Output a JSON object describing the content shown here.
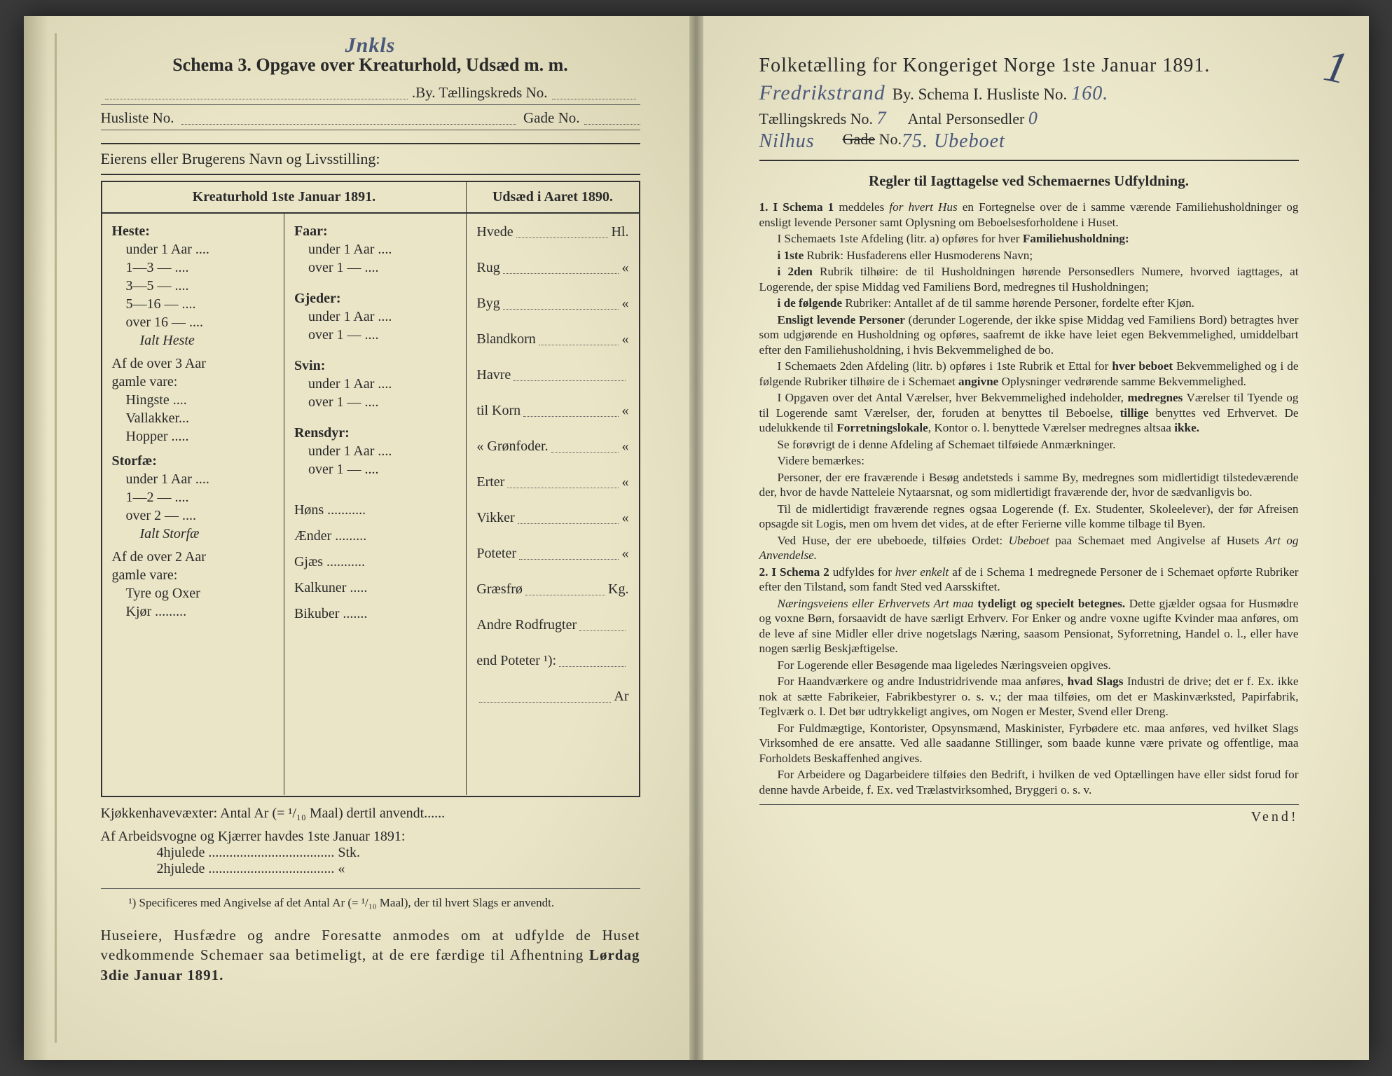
{
  "colors": {
    "paper": "#ece8cc",
    "paper_edge": "#ded9ba",
    "ink": "#2a2a2a",
    "handwriting": "#4a587a",
    "spine": "#6e6b56"
  },
  "typography": {
    "base_font": "Georgia, 'Times New Roman', serif",
    "handwriting_font": "'Brush Script MT', cursive",
    "left_title_pt": 26,
    "right_title_pt": 28,
    "body_pt": 17.2,
    "table_pt": 20
  },
  "left": {
    "hand_top": "Jnkls",
    "title": "Schema 3.   Opgave over Kreaturhold, Udsæd m. m.",
    "line_by_left": ".By.  Tællingskreds No.",
    "line2_a": "Husliste No.",
    "line2_b": "Gade No.",
    "eier": "Eierens eller Brugerens Navn og Livsstilling:",
    "head_kreatur": "Kreaturhold 1ste Januar 1891.",
    "head_udsaed": "Udsæd i Aaret 1890.",
    "col1": {
      "heste": "Heste:",
      "heste_rows": [
        "under 1 Aar ....",
        "1—3  —  ....",
        "3—5  —  ....",
        "5—16 —  ....",
        "over 16 —  ...."
      ],
      "ialt_heste": "Ialt Heste",
      "over3": "Af de over 3 Aar",
      "gamle": "gamle vare:",
      "over3_rows": [
        "Hingste ....",
        "Vallakker...",
        "Hopper ....."
      ],
      "storfae": "Storfæ:",
      "storfae_rows": [
        "under 1 Aar ....",
        "1—2  —  ....",
        "over 2  —  ...."
      ],
      "ialt_storfae": "Ialt Storfæ",
      "over2": "Af de over 2 Aar",
      "over2_rows": [
        "Tyre og Oxer",
        "Kjør ........."
      ]
    },
    "col2": {
      "faar": "Faar:",
      "faar_rows": [
        "under 1 Aar ....",
        "over 1  —  ...."
      ],
      "gjeder": "Gjeder:",
      "gjeder_rows": [
        "under 1 Aar ....",
        "over 1  —  ...."
      ],
      "svin": "Svin:",
      "svin_rows": [
        "under 1 Aar ....",
        "over 1  —  ...."
      ],
      "rensdyr": "Rensdyr:",
      "rensdyr_rows": [
        "under 1 Aar ....",
        "over 1  —  ...."
      ],
      "hons": "Høns ...........",
      "aender": "Ænder .........",
      "gjaes": "Gjæs ...........",
      "kalkuner": "Kalkuner .....",
      "bikuber": "Bikuber ......."
    },
    "col3": [
      {
        "n": "Hvede",
        "u": "Hl."
      },
      {
        "n": "Rug",
        "u": "«"
      },
      {
        "n": "Byg",
        "u": "«"
      },
      {
        "n": "Blandkorn",
        "u": "«"
      },
      {
        "n": "Havre",
        "u": ""
      },
      {
        "n": "   til Korn",
        "u": "«"
      },
      {
        "n": "   «  Grønfoder.",
        "u": "«"
      },
      {
        "n": "Erter",
        "u": "«"
      },
      {
        "n": "Vikker",
        "u": "«"
      },
      {
        "n": "Poteter",
        "u": "«"
      },
      {
        "n": "Græsfrø",
        "u": "Kg."
      },
      {
        "n": "Andre Rodfrugter",
        "u": ""
      },
      {
        "n": "end Poteter ¹):",
        "u": ""
      },
      {
        "n": "",
        "u": "Ar"
      }
    ],
    "kjokken": "Kjøkkenhavevæxter:   Antal Ar (= ¹/₁₀ Maal) dertil anvendt......",
    "arbeid": "Af Arbeidsvogne og Kjærrer havdes 1ste Januar 1891:",
    "arbeid_rows": [
      "4hjulede .................................... Stk.",
      "2hjulede ....................................   «"
    ],
    "footnote": "¹) Specificeres med Angivelse af det Antal Ar (= ¹/₁₀ Maal), der til hvert Slags er anvendt.",
    "request": "Huseiere, Husfædre og andre Foresatte anmodes om at udfylde de Huset vedkommende Schemaer saa betimeligt, at de ere færdige til Afhentning Lørdag 3die Januar 1891."
  },
  "right": {
    "margin_mark": "1",
    "title": "Folketælling for Kongeriget Norge 1ste Januar 1891.",
    "line2_hw1": "Fredrikstrand",
    "line2_mid": "By.   Schema I.   Husliste No.",
    "line2_hw2": "160.",
    "line3_a": "Tællingskreds No.",
    "line3_a_hw": "7",
    "line3_b": "Antal Personsedler",
    "line3_b_hw": "0",
    "line4_hw1": "Nilhus",
    "line4_gade": "Gade",
    "line4_no": "No.",
    "line4_hw2": "75. Ubeboet",
    "regler": "Regler til Iagttagelse ved Schemaernes Udfyldning.",
    "body": [
      {
        "num": "1.",
        "html": "<b>I Schema 1</b> meddeles <i>for hvert Hus</i> en Fortegnelse over de i samme værende Familiehusholdninger og ensligt levende Personer samt Oplysning om Beboelsesforholdene i Huset."
      },
      {
        "html": "I Schemaets 1ste Afdeling (litr. a) opføres for hver <b>Familiehusholdning:</b>"
      },
      {
        "html": "<b>i 1ste</b> Rubrik: Husfaderens eller Husmoderens Navn;"
      },
      {
        "html": "<b>i 2den</b> Rubrik tilhøire: de til Husholdningen hørende Personsedlers Numere, hvorved iagttages, at Logerende, der spise Middag ved Familiens Bord, medregnes til Husholdningen;"
      },
      {
        "html": "<b>i de følgende</b> Rubriker: Antallet af de til samme hørende Personer, fordelte efter Kjøn."
      },
      {
        "html": "<b>Ensligt levende Personer</b> (derunder Logerende, der ikke spise Middag ved Familiens Bord) betragtes hver som udgjørende en Husholdning og opføres, saafremt de ikke have leiet egen Bekvemmelighed, umiddelbart efter den Familiehusholdning, i hvis Bekvemmelighed de bo."
      },
      {
        "html": "I Schemaets 2den Afdeling (litr. b) opføres i 1ste Rubrik et Ettal for <b>hver beboet</b> Bekvemmelighed og i de følgende Rubriker tilhøire de i Schemaet <b>angivne</b> Oplysninger vedrørende samme Bekvemmelighed."
      },
      {
        "html": "I Opgaven over det Antal Værelser, hver Bekvemmelighed indeholder, <b>medregnes</b> Værelser til Tyende og til Logerende samt Værelser, der, foruden at benyttes til Beboelse, <b>tillige</b> benyttes ved Erhvervet. De udelukkende til <b>Forretningslokale</b>, Kontor o. l. benyttede Værelser medregnes altsaa <b>ikke.</b>"
      },
      {
        "html": "Se forøvrigt de i denne Afdeling af Schemaet tilføiede Anmærkninger."
      },
      {
        "html": "Videre bemærkes:"
      },
      {
        "html": "Personer, der ere fraværende i Besøg andetsteds i samme By, medregnes som midlertidigt tilstedeværende der, hvor de havde Natteleie Nytaarsnat, og som midlertidigt fraværende der, hvor de sædvanligvis bo."
      },
      {
        "html": "Til de midlertidigt fraværende regnes ogsaa Logerende (f. Ex. Studenter, Skoleelever), der før Afreisen opsagde sit Logis, men om hvem det vides, at de efter Ferierne ville komme tilbage til Byen."
      },
      {
        "html": "Ved Huse, der ere ubeboede, tilføies Ordet: <i>Ubeboet</i> paa Schemaet med Angivelse af Husets <i>Art og Anvendelse.</i>"
      },
      {
        "num": "2.",
        "html": "<b>I Schema 2</b> udfyldes for <i>hver enkelt</i> af de i Schema 1 medregnede Personer de i Schemaet opførte Rubriker efter den Tilstand, som fandt Sted ved Aarsskiftet."
      },
      {
        "html": "<i>Næringsveiens eller Erhvervets Art maa</i> <b>tydeligt og specielt betegnes.</b> Dette gjælder ogsaa for Husmødre og voxne Børn, forsaavidt de have særligt Erhverv. For Enker og andre voxne ugifte Kvinder maa anføres, om de leve af sine Midler eller drive nogetslags Næring, saasom Pensionat, Syforretning, Handel o. l., eller have nogen særlig Beskjæftigelse."
      },
      {
        "html": "For Logerende eller Besøgende maa ligeledes Næringsveien opgives."
      },
      {
        "html": "For Haandværkere og andre Industridrivende maa anføres, <b>hvad Slags</b> Industri de drive; det er f. Ex. ikke nok at sætte Fabrikeier, Fabrikbestyrer o. s. v.; der maa tilføies, om det er Maskinværksted, Papirfabrik, Teglværk o. l. Det bør udtrykkeligt angives, om Nogen er Mester, Svend eller Dreng."
      },
      {
        "html": "For Fuldmægtige, Kontorister, Opsynsmænd, Maskinister, Fyrbødere etc. maa anføres, ved hvilket Slags Virksomhed de ere ansatte. Ved alle saadanne Stillinger, som baade kunne være private og offentlige, maa Forholdets Beskaffenhed angives."
      },
      {
        "html": "For Arbeidere og Dagarbeidere tilføies den Bedrift, i hvilken de ved Optællingen have eller sidst forud for denne havde Arbeide, f. Ex. ved Trælastvirksomhed, Bryggeri o. s. v."
      }
    ],
    "vend": "Vend!"
  }
}
